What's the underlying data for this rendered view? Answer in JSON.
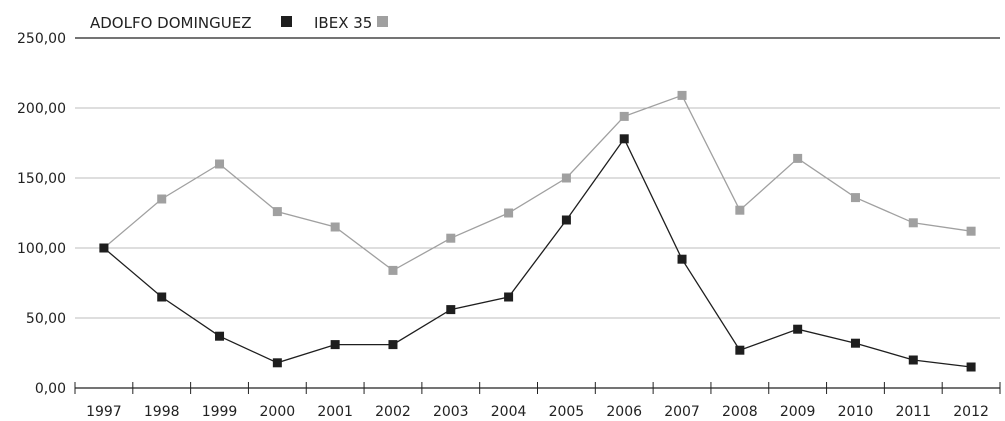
{
  "chart_data": {
    "type": "line",
    "categories": [
      "1997",
      "1998",
      "1999",
      "2000",
      "2001",
      "2002",
      "2003",
      "2004",
      "2005",
      "2006",
      "2007",
      "2008",
      "2009",
      "2010",
      "2011",
      "2012"
    ],
    "series": [
      {
        "name": "ADOLFO DOMINGUEZ",
        "color": "#1e1e1e",
        "values": [
          100,
          65,
          37,
          18,
          31,
          31,
          56,
          65,
          120,
          178,
          92,
          27,
          42,
          32,
          20,
          15
        ]
      },
      {
        "name": "IBEX 35",
        "color": "#a0a0a0",
        "values": [
          100,
          135,
          160,
          126,
          115,
          84,
          107,
          125,
          150,
          194,
          209,
          127,
          164,
          136,
          118,
          112
        ]
      }
    ],
    "y_ticks": [
      "0,00",
      "50,00",
      "100,00",
      "150,00",
      "200,00",
      "250,00"
    ],
    "ylim": [
      0,
      250
    ],
    "grid": true,
    "legend_position": "top-left"
  }
}
